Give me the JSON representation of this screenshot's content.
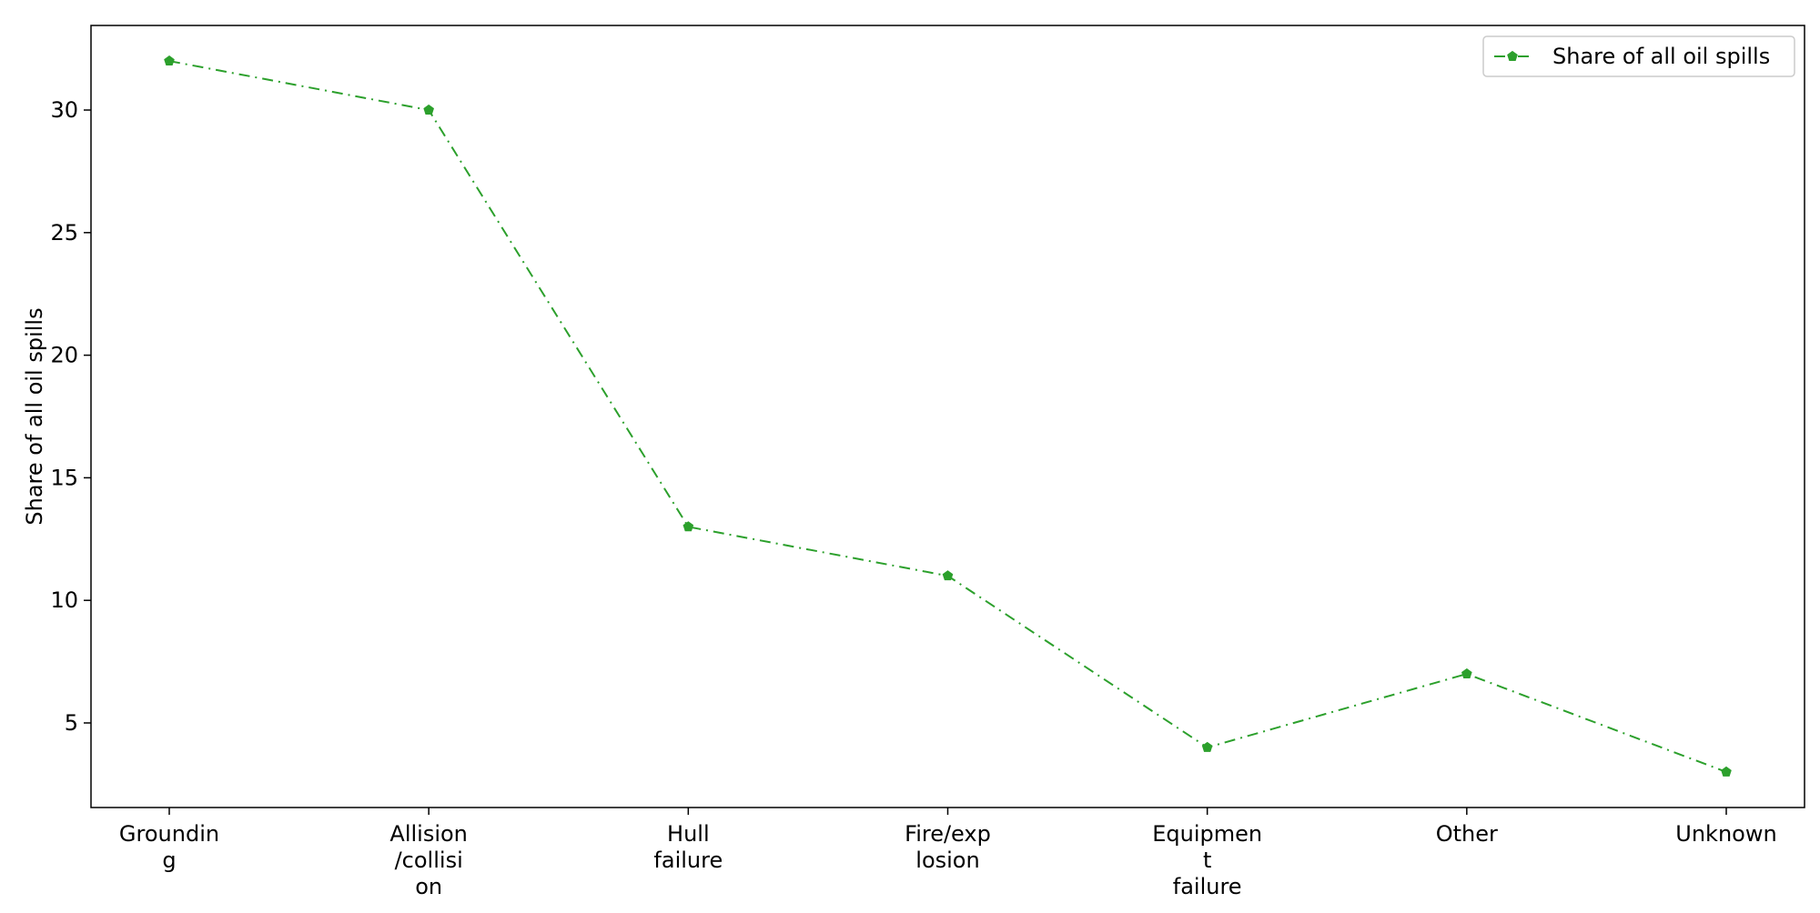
{
  "chart_data": {
    "type": "line",
    "title": "",
    "xlabel": "",
    "ylabel": "Share of all oil spills",
    "categories": [
      [
        "Groundin",
        "g"
      ],
      [
        "Allision",
        "/collisi",
        "on"
      ],
      [
        "Hull",
        "failure"
      ],
      [
        "Fire/exp",
        "losion"
      ],
      [
        "Equipmen",
        "t",
        "failure"
      ],
      [
        "Other"
      ],
      [
        "Unknown"
      ]
    ],
    "series": [
      {
        "name": "Share of all oil spills",
        "values": [
          32,
          30,
          13,
          11,
          4,
          7,
          3
        ],
        "color": "#2ca02c",
        "line_style": "dashdot",
        "marker": "pentagon"
      }
    ],
    "ylim": [
      1.55,
      33.45
    ],
    "yticks": [
      5,
      10,
      15,
      20,
      25,
      30
    ],
    "grid": false,
    "legend_position": "top-right"
  }
}
